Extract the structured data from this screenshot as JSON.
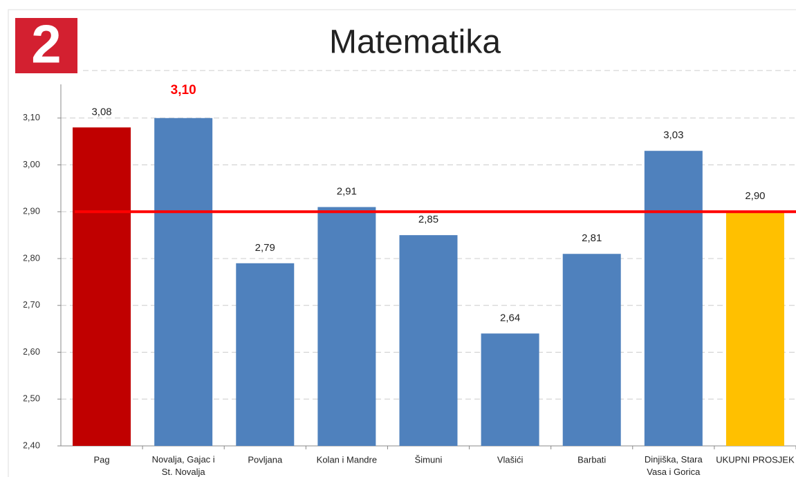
{
  "badge": "2",
  "chart_data": {
    "type": "bar",
    "title": "Matematika",
    "categories": [
      "Pag",
      "Novalja, Gajac i St. Novalja",
      "Povljana",
      "Kolan i Mandre",
      "Šimuni",
      "Vlašići",
      "Barbati",
      "Dinjiška, Stara Vasa i Gorica",
      "UKUPNI PROSJEK"
    ],
    "values": [
      3.08,
      3.1,
      2.79,
      2.91,
      2.85,
      2.64,
      2.81,
      3.03,
      2.9
    ],
    "value_labels": [
      "3,08",
      "3,10",
      "2,79",
      "2,91",
      "2,85",
      "2,64",
      "2,81",
      "3,03",
      "2,90"
    ],
    "colors": [
      "#c00000",
      "#4f81bd",
      "#4f81bd",
      "#4f81bd",
      "#4f81bd",
      "#4f81bd",
      "#4f81bd",
      "#4f81bd",
      "#ffc000"
    ],
    "value_label_colors": [
      "#222222",
      "#ff0000",
      "#222222",
      "#222222",
      "#222222",
      "#222222",
      "#222222",
      "#222222",
      "#222222"
    ],
    "reference_line": {
      "value": 2.9,
      "color": "#ff0000"
    },
    "ylim": [
      2.4,
      3.172
    ],
    "yticks": [
      {
        "value": 2.4,
        "label": "2,40"
      },
      {
        "value": 2.5,
        "label": "2,50"
      },
      {
        "value": 2.6,
        "label": "2,60"
      },
      {
        "value": 2.7,
        "label": "2,70"
      },
      {
        "value": 2.8,
        "label": "2,80"
      },
      {
        "value": 2.9,
        "label": "2,90"
      },
      {
        "value": 3.0,
        "label": "3,00"
      },
      {
        "value": 3.1,
        "label": "3,10"
      }
    ],
    "grid": true
  }
}
